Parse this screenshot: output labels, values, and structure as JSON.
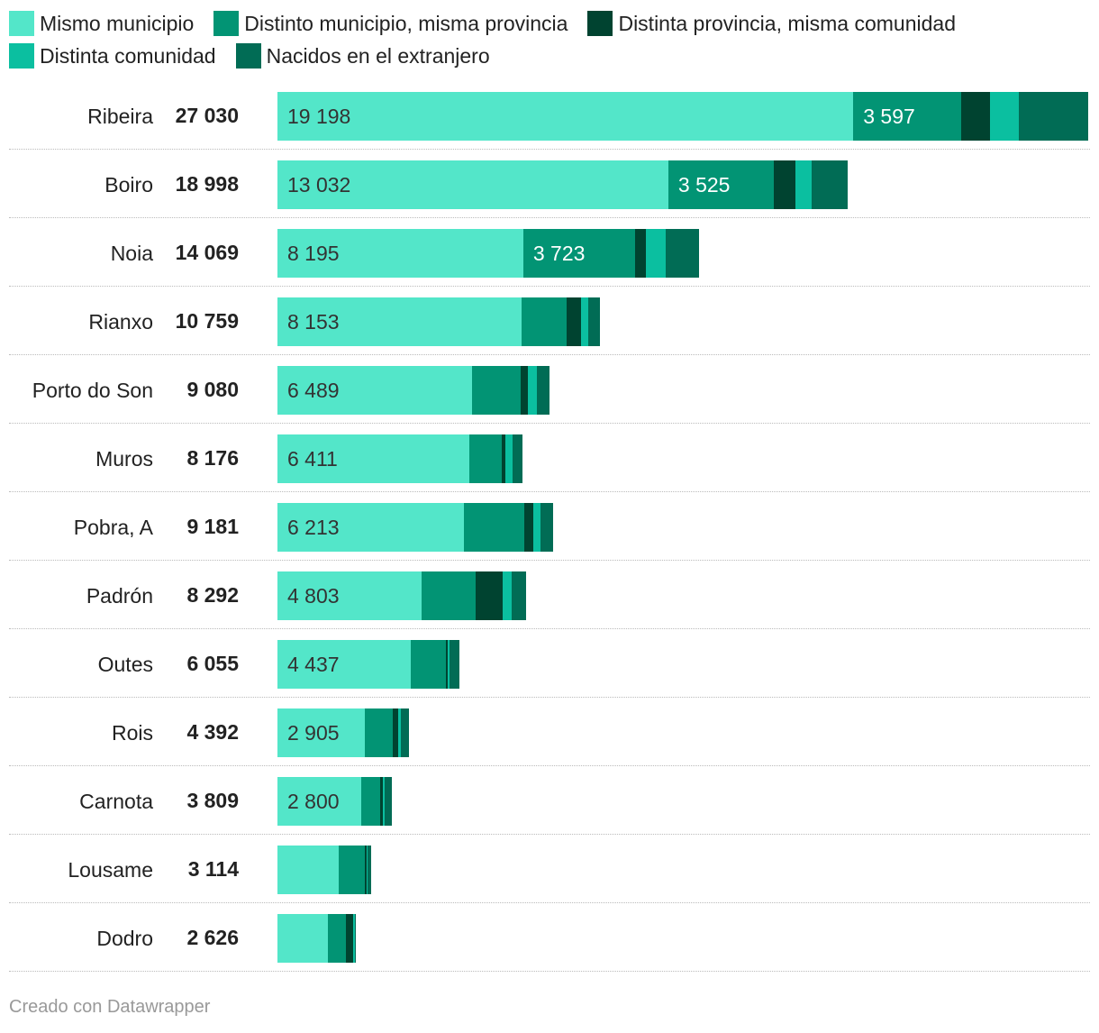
{
  "legend": [
    {
      "label": "Mismo municipio",
      "color": "#53e6c9"
    },
    {
      "label": "Distinto municipio, misma provincia",
      "color": "#029474"
    },
    {
      "label": "Distinta provincia, misma comunidad",
      "color": "#004330"
    },
    {
      "label": "Distinta comunidad",
      "color": "#0bbfa0"
    },
    {
      "label": "Nacidos en el extranjero",
      "color": "#016c55"
    }
  ],
  "footer": "Creado con Datawrapper",
  "chart_data": {
    "type": "bar",
    "orientation": "horizontal",
    "stacked": true,
    "categories": [
      "Ribeira",
      "Boiro",
      "Noia",
      "Rianxo",
      "Porto do Son",
      "Muros",
      "Pobra, A",
      "Padrón",
      "Outes",
      "Rois",
      "Carnota",
      "Lousame",
      "Dodro"
    ],
    "totals": [
      "27 030",
      "18 998",
      "14 069",
      "10 759",
      "9 080",
      "8 176",
      "9 181",
      "8 292",
      "6 055",
      "4 392",
      "3 809",
      "3 114",
      "2 626"
    ],
    "total_values": [
      27030,
      18998,
      14069,
      10759,
      9080,
      8176,
      9181,
      8292,
      6055,
      4392,
      3809,
      3114,
      2626
    ],
    "xlim": [
      0,
      27030
    ],
    "series": [
      {
        "name": "Mismo municipio",
        "color": "#53e6c9",
        "values": [
          19198,
          13032,
          8195,
          8153,
          6489,
          6411,
          6213,
          4803,
          4437,
          2905,
          2800,
          2040,
          1690
        ],
        "labels": [
          "19 198",
          "13 032",
          "8 195",
          "8 153",
          "6 489",
          "6 411",
          "6 213",
          "4 803",
          "4 437",
          "2 905",
          "2 800",
          "",
          ""
        ]
      },
      {
        "name": "Distinto municipio, misma provincia",
        "color": "#029474",
        "values": [
          3597,
          3525,
          3723,
          1500,
          1620,
          1080,
          2030,
          1800,
          1170,
          950,
          620,
          860,
          600
        ],
        "labels": [
          "3 597",
          "3 525",
          "3 723",
          "",
          "",
          "",
          "",
          "",
          "",
          "",
          "",
          "",
          ""
        ]
      },
      {
        "name": "Distinta provincia, misma comunidad",
        "color": "#004330",
        "values": [
          960,
          720,
          360,
          480,
          240,
          120,
          300,
          900,
          60,
          180,
          90,
          60,
          240
        ],
        "labels": [
          "",
          "",
          "",
          "",
          "",
          "",
          "",
          "",
          "",
          "",
          "",
          "",
          ""
        ]
      },
      {
        "name": "Distinta comunidad",
        "color": "#0bbfa0",
        "values": [
          960,
          540,
          660,
          240,
          300,
          240,
          240,
          300,
          60,
          90,
          60,
          30,
          60
        ],
        "labels": [
          "",
          "",
          "",
          "",
          "",
          "",
          "",
          "",
          "",
          "",
          "",
          "",
          ""
        ]
      },
      {
        "name": "Nacidos en el extranjero",
        "color": "#016c55",
        "values": [
          2315,
          1181,
          1131,
          386,
          431,
          325,
          398,
          489,
          328,
          267,
          239,
          124,
          36
        ],
        "labels": [
          "",
          "",
          "",
          "",
          "",
          "",
          "",
          "",
          "",
          "",
          "",
          "",
          ""
        ]
      }
    ]
  }
}
